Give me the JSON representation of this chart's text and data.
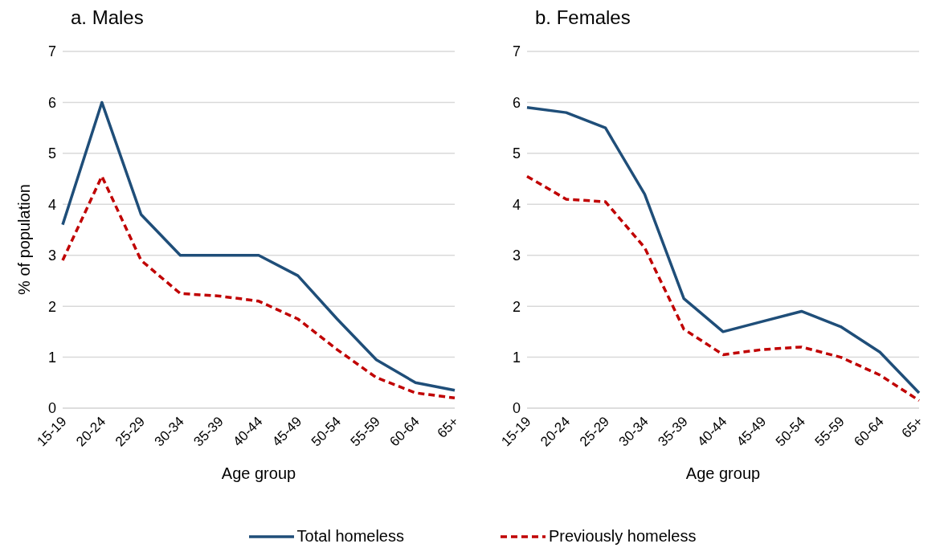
{
  "chart_data": [
    {
      "type": "line",
      "title": "a. Males",
      "xlabel": "Age group",
      "ylabel": "% of population",
      "categories": [
        "15-19",
        "20-24",
        "25-29",
        "30-34",
        "35-39",
        "40-44",
        "45-49",
        "50-54",
        "55-59",
        "60-64",
        "65+"
      ],
      "series": [
        {
          "name": "Total homeless",
          "color": "#1f4e79",
          "values": [
            3.6,
            6.0,
            3.8,
            3.0,
            3.0,
            3.0,
            2.6,
            1.75,
            0.95,
            0.5,
            0.35
          ]
        },
        {
          "name": "Previously homeless",
          "color": "#c00000",
          "values": [
            2.9,
            4.55,
            2.9,
            2.25,
            2.2,
            2.1,
            1.75,
            1.15,
            0.6,
            0.3,
            0.2
          ],
          "line_style": "dashed"
        }
      ],
      "ylim": [
        0,
        7
      ],
      "yticks": [
        0,
        1,
        2,
        3,
        4,
        5,
        6,
        7
      ],
      "grid": "y",
      "legend": "bottom",
      "marker": "none",
      "line_style": "solid"
    },
    {
      "type": "line",
      "title": "b. Females",
      "xlabel": "Age group",
      "categories": [
        "15-19",
        "20-24",
        "25-29",
        "30-34",
        "35-39",
        "40-44",
        "45-49",
        "50-54",
        "55-59",
        "60-64",
        "65+"
      ],
      "series": [
        {
          "name": "Total homeless",
          "color": "#1f4e79",
          "values": [
            5.9,
            5.8,
            5.5,
            4.2,
            2.15,
            1.5,
            1.7,
            1.9,
            1.6,
            1.1,
            0.3
          ]
        },
        {
          "name": "Previously homeless",
          "color": "#c00000",
          "values": [
            4.55,
            4.1,
            4.05,
            3.15,
            1.55,
            1.05,
            1.15,
            1.2,
            1.0,
            0.65,
            0.15
          ],
          "line_style": "dashed"
        }
      ],
      "ylim": [
        0,
        7
      ],
      "yticks": [
        0,
        1,
        2,
        3,
        4,
        5,
        6,
        7
      ],
      "grid": "y",
      "marker": "none",
      "line_style": "solid"
    }
  ]
}
